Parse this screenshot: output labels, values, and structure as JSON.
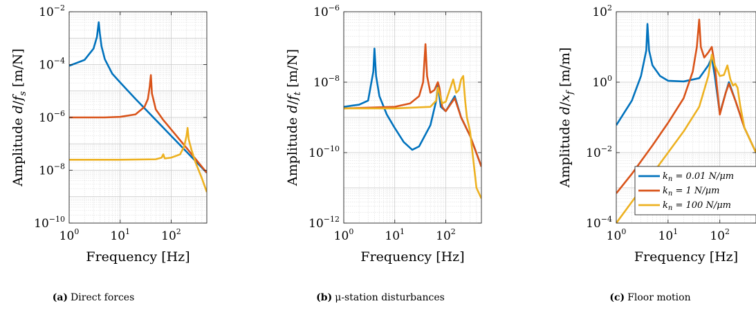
{
  "chart_data": [
    {
      "type": "line",
      "xlabel": "Frequency [Hz]",
      "ylabel": "Amplitude d/f_s [m/N]",
      "xscale": "log",
      "yscale": "log",
      "xlim": [
        1,
        500
      ],
      "ylim": [
        1e-10,
        0.01
      ],
      "xticks": [
        1,
        10,
        100
      ],
      "yticks": [
        1e-10,
        1e-08,
        1e-06,
        0.0001,
        0.01
      ],
      "grid": true,
      "series": [
        {
          "name": "k_n = 0.01 N/μm",
          "color": "#0072BD",
          "x": [
            1,
            2,
            3,
            3.5,
            3.8,
            4.0,
            4.3,
            5,
            7,
            10,
            20,
            50,
            100,
            200,
            500
          ],
          "y": [
            9e-05,
            0.00015,
            0.0004,
            0.0011,
            0.004,
            0.0015,
            0.0005,
            0.00016,
            4.5e-05,
            2.1e-05,
            5e-06,
            8e-07,
            2e-07,
            5e-08,
            8e-09
          ]
        },
        {
          "name": "k_n = 1 N/μm",
          "color": "#D95319",
          "x": [
            1,
            5,
            10,
            20,
            30,
            35,
            38,
            40,
            42,
            50,
            70,
            100,
            200,
            500
          ],
          "y": [
            1e-06,
            1e-06,
            1.05e-06,
            1.3e-06,
            2.5e-06,
            5e-06,
            1.5e-05,
            4e-05,
            8e-06,
            2e-06,
            8e-07,
            3.5e-07,
            7e-08,
            8e-09
          ]
        },
        {
          "name": "k_n = 100 N/μm",
          "color": "#EDB120",
          "x": [
            1,
            10,
            50,
            65,
            70,
            75,
            100,
            150,
            180,
            200,
            210,
            220,
            250,
            300,
            400,
            500
          ],
          "y": [
            2.5e-08,
            2.5e-08,
            2.6e-08,
            3e-08,
            4e-08,
            2.8e-08,
            3e-08,
            4e-08,
            8e-08,
            2e-07,
            4e-07,
            1.5e-07,
            6e-08,
            2e-08,
            5e-09,
            1.5e-09
          ]
        }
      ]
    },
    {
      "type": "line",
      "xlabel": "Frequency [Hz]",
      "ylabel": "Amplitude d/f_t [m/N]",
      "xscale": "log",
      "yscale": "log",
      "xlim": [
        1,
        500
      ],
      "ylim": [
        1e-12,
        1e-06
      ],
      "xticks": [
        1,
        10,
        100
      ],
      "yticks": [
        1e-12,
        1e-10,
        1e-08,
        1e-06
      ],
      "grid": true,
      "series": [
        {
          "name": "k_n = 0.01 N/μm",
          "color": "#0072BD",
          "x": [
            1,
            2,
            3,
            3.8,
            4.0,
            4.3,
            5,
            7,
            10,
            15,
            22,
            30,
            50,
            65,
            70,
            80,
            100,
            150,
            200,
            300,
            500
          ],
          "y": [
            2e-09,
            2.3e-09,
            3e-09,
            2e-08,
            9e-08,
            1.5e-08,
            4e-09,
            1.2e-09,
            5e-10,
            2e-10,
            1.2e-10,
            1.5e-10,
            6e-10,
            3e-09,
            8e-09,
            2e-09,
            1.5e-09,
            4e-09,
            1e-09,
            3e-10,
            4e-11
          ]
        },
        {
          "name": "k_n = 1 N/μm",
          "color": "#D95319",
          "x": [
            1,
            10,
            20,
            30,
            36,
            40,
            43,
            50,
            60,
            70,
            75,
            85,
            100,
            150,
            200,
            300,
            500
          ],
          "y": [
            1.8e-09,
            2e-09,
            2.5e-09,
            4e-09,
            1e-08,
            1.2e-07,
            1.5e-08,
            5e-09,
            6e-09,
            1e-08,
            7e-09,
            2e-09,
            1.5e-09,
            3.5e-09,
            1e-09,
            3e-10,
            4e-11
          ]
        },
        {
          "name": "k_n = 100 N/μm",
          "color": "#EDB120",
          "x": [
            1,
            10,
            50,
            65,
            70,
            75,
            85,
            100,
            140,
            160,
            180,
            200,
            220,
            240,
            260,
            300,
            400,
            500
          ],
          "y": [
            1.8e-09,
            1.8e-09,
            2e-09,
            3e-09,
            7e-09,
            5e-09,
            2.5e-09,
            2.8e-09,
            1.2e-08,
            5e-09,
            6e-09,
            1.2e-08,
            1.5e-08,
            3e-09,
            1e-09,
            4e-10,
            1e-11,
            5e-12
          ]
        }
      ]
    },
    {
      "type": "line",
      "xlabel": "Frequency [Hz]",
      "ylabel": "Amplitude d/x_f [m/m]",
      "xscale": "log",
      "yscale": "log",
      "xlim": [
        1,
        500
      ],
      "ylim": [
        0.0001,
        100
      ],
      "xticks": [
        1,
        10,
        100
      ],
      "yticks": [
        0.0001,
        0.01,
        1,
        100
      ],
      "grid": true,
      "legend_position": "bottom-right",
      "series": [
        {
          "name": "k_n = 0.01 N/μm",
          "color": "#0072BD",
          "x": [
            1,
            2,
            3,
            3.8,
            4.0,
            4.3,
            5,
            7,
            10,
            20,
            40,
            60,
            70,
            80,
            100,
            130,
            150,
            200,
            300,
            500
          ],
          "y": [
            0.06,
            0.3,
            1.5,
            8,
            45,
            8,
            3,
            1.5,
            1.1,
            1.05,
            1.3,
            3,
            5,
            1.5,
            0.13,
            0.5,
            1.0,
            0.3,
            0.05,
            0.01
          ]
        },
        {
          "name": "k_n = 1 N/μm",
          "color": "#D95319",
          "x": [
            1,
            2,
            5,
            10,
            20,
            30,
            36,
            40,
            43,
            50,
            60,
            70,
            80,
            100,
            130,
            150,
            200,
            300,
            500
          ],
          "y": [
            0.0007,
            0.0025,
            0.016,
            0.07,
            0.35,
            2,
            10,
            60,
            10,
            5,
            7,
            10,
            3,
            0.12,
            0.5,
            0.9,
            0.3,
            0.05,
            0.01
          ]
        },
        {
          "name": "k_n = 100 N/μm",
          "color": "#EDB120",
          "x": [
            1,
            2,
            5,
            10,
            20,
            40,
            60,
            70,
            80,
            100,
            120,
            140,
            160,
            180,
            200,
            220,
            250,
            300,
            500
          ],
          "y": [
            0.0001,
            0.0004,
            0.0025,
            0.01,
            0.04,
            0.2,
            1.5,
            6,
            3,
            1.5,
            1.6,
            3,
            1.2,
            0.8,
            0.9,
            0.7,
            0.2,
            0.05,
            0.01
          ]
        }
      ]
    }
  ],
  "captions": [
    {
      "tag": "(a)",
      "text": "Direct forces"
    },
    {
      "tag": "(b)",
      "text": "μ-station disturbances"
    },
    {
      "tag": "(c)",
      "text": "Floor motion"
    }
  ]
}
